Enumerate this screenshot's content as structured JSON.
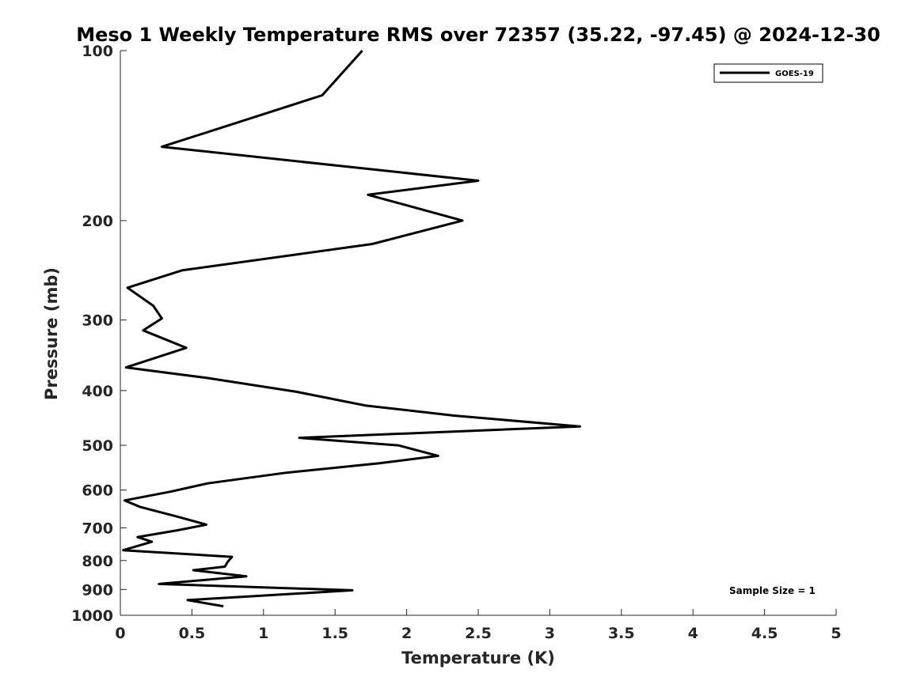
{
  "chart_data": {
    "type": "line",
    "title": "Meso 1 Weekly Temperature RMS over 72357 (35.22, -97.45) @ 2024-12-30",
    "xlabel": "Temperature (K)",
    "ylabel": "Pressure (mb)",
    "xlim": [
      0,
      5
    ],
    "ylim": [
      100,
      1000
    ],
    "y_scale": "log",
    "y_reversed": true,
    "grid": false,
    "legend_position": "top-right",
    "x_ticks": [
      "0",
      "0.5",
      "1",
      "1.5",
      "2",
      "2.5",
      "3",
      "3.5",
      "4",
      "4.5",
      "5"
    ],
    "y_ticks": [
      "100",
      "200",
      "300",
      "400",
      "500",
      "600",
      "700",
      "800",
      "900",
      "1000"
    ],
    "series": [
      {
        "name": "GOES-19",
        "color": "#000000",
        "x": [
          1.69,
          1.41,
          0.29,
          2.5,
          1.73,
          2.39,
          1.76,
          0.43,
          0.05,
          0.23,
          0.29,
          0.16,
          0.46,
          0.04,
          0.61,
          1.23,
          1.71,
          2.33,
          3.21,
          1.25,
          1.94,
          2.22,
          1.81,
          1.16,
          0.61,
          0.35,
          0.03,
          0.14,
          0.42,
          0.6,
          0.4,
          0.12,
          0.22,
          0.02,
          0.78,
          0.75,
          0.73,
          0.51,
          0.88,
          0.27,
          1.62,
          0.47,
          0.72
        ],
        "y": [
          100,
          120,
          148,
          170,
          180,
          200,
          220,
          245,
          263,
          283,
          298,
          313,
          336,
          364,
          380,
          402,
          425,
          443,
          463,
          485,
          500,
          522,
          538,
          559,
          584,
          604,
          626,
          643,
          671,
          691,
          707,
          727,
          741,
          767,
          788,
          804,
          820,
          832,
          853,
          880,
          903,
          940,
          964
        ]
      }
    ],
    "annotations": [
      "Sample Size = 1"
    ]
  }
}
